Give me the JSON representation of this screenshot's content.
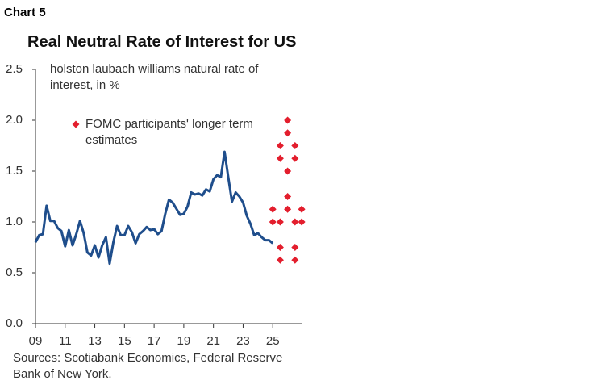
{
  "chart_data": {
    "type": "line",
    "label": "Chart 5",
    "title": "Real Neutral Rate of Interest for US",
    "source": "Sources: Scotiabank Economics, Federal Reserve Bank of New York.",
    "xlim": [
      2009,
      2027
    ],
    "xticks": [
      {
        "value": 2009,
        "label": "09"
      },
      {
        "value": 2011,
        "label": "11"
      },
      {
        "value": 2013,
        "label": "13"
      },
      {
        "value": 2015,
        "label": "15"
      },
      {
        "value": 2017,
        "label": "17"
      },
      {
        "value": 2019,
        "label": "19"
      },
      {
        "value": 2021,
        "label": "21"
      },
      {
        "value": 2023,
        "label": "23"
      },
      {
        "value": 2025,
        "label": "25"
      }
    ],
    "ylim": [
      0,
      2.5
    ],
    "yticks": [
      {
        "value": 0,
        "label": "0.0"
      },
      0.5,
      {
        "value": 1,
        "label": "1.0"
      },
      1.5,
      {
        "value": 2,
        "label": "2.0"
      },
      2.5
    ],
    "grid": false,
    "series": [
      {
        "name": "holston laubach williams natural rate of interest, in %",
        "type": "line",
        "color": "#1f4e8c",
        "x": [
          2009,
          2009.25,
          2009.5,
          2009.75,
          2010,
          2010.25,
          2010.5,
          2010.75,
          2011,
          2011.25,
          2011.5,
          2011.75,
          2012,
          2012.25,
          2012.5,
          2012.75,
          2013,
          2013.25,
          2013.5,
          2013.75,
          2014,
          2014.25,
          2014.5,
          2014.75,
          2015,
          2015.25,
          2015.5,
          2015.75,
          2016,
          2016.25,
          2016.5,
          2016.75,
          2017,
          2017.25,
          2017.5,
          2017.75,
          2018,
          2018.25,
          2018.5,
          2018.75,
          2019,
          2019.25,
          2019.5,
          2019.75,
          2020,
          2020.25,
          2020.5,
          2020.75,
          2021,
          2021.25,
          2021.5,
          2021.75,
          2022,
          2022.25,
          2022.5,
          2022.75,
          2023,
          2023.25,
          2023.5,
          2023.75,
          2024,
          2024.25,
          2024.5,
          2024.75,
          2025
        ],
        "values": [
          0.8,
          0.87,
          0.88,
          1.16,
          1.01,
          1.01,
          0.94,
          0.91,
          0.76,
          0.92,
          0.77,
          0.88,
          1.01,
          0.89,
          0.7,
          0.67,
          0.77,
          0.65,
          0.77,
          0.85,
          0.59,
          0.8,
          0.96,
          0.87,
          0.87,
          0.96,
          0.9,
          0.79,
          0.88,
          0.91,
          0.95,
          0.92,
          0.93,
          0.88,
          0.91,
          1.08,
          1.22,
          1.19,
          1.13,
          1.07,
          1.08,
          1.15,
          1.29,
          1.27,
          1.28,
          1.26,
          1.32,
          1.3,
          1.42,
          1.46,
          1.44,
          1.69,
          1.44,
          1.2,
          1.29,
          1.25,
          1.19,
          1.06,
          0.98,
          0.87,
          0.89,
          0.85,
          0.82,
          0.82,
          0.79
        ]
      },
      {
        "name": "FOMC participants' longer term estimates",
        "type": "scatter",
        "color": "#e31e2d",
        "x": [
          2025,
          2025,
          2025.5,
          2025.5,
          2025.5,
          2025.5,
          2025.5,
          2026,
          2026,
          2026,
          2026,
          2026,
          2026.5,
          2026.5,
          2026.5,
          2026.5,
          2026.5,
          2026.95,
          2026.95
        ],
        "values": [
          1.125,
          1.0,
          1.75,
          1.625,
          1.0,
          0.75,
          0.625,
          2.0,
          1.875,
          1.5,
          1.25,
          1.125,
          1.75,
          1.625,
          1.0,
          0.75,
          0.625,
          1.125,
          1.0
        ]
      }
    ]
  }
}
